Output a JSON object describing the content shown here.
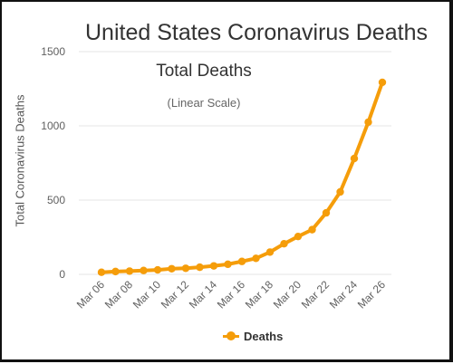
{
  "page": {
    "title": "United States Coronavirus Deaths"
  },
  "chart_data": {
    "type": "line",
    "title": "Total Deaths",
    "subtitle": "(Linear Scale)",
    "xlabel": "",
    "ylabel": "Total Coronavirus Deaths",
    "ylim": [
      0,
      1500
    ],
    "yticks": [
      0,
      500,
      1000,
      1500
    ],
    "grid": "horizontal",
    "legend_position": "bottom-center",
    "x": [
      "Mar 06",
      "Mar 07",
      "Mar 08",
      "Mar 09",
      "Mar 10",
      "Mar 11",
      "Mar 12",
      "Mar 13",
      "Mar 14",
      "Mar 15",
      "Mar 16",
      "Mar 17",
      "Mar 18",
      "Mar 19",
      "Mar 20",
      "Mar 21",
      "Mar 22",
      "Mar 23",
      "Mar 24",
      "Mar 25",
      "Mar 26"
    ],
    "x_tick_labels": [
      "Mar 06",
      "Mar 08",
      "Mar 10",
      "Mar 12",
      "Mar 14",
      "Mar 16",
      "Mar 18",
      "Mar 20",
      "Mar 22",
      "Mar 24",
      "Mar 26"
    ],
    "series": [
      {
        "name": "Deaths",
        "color": "#f59d0a",
        "values": [
          14,
          19,
          22,
          26,
          30,
          38,
          41,
          48,
          57,
          68,
          87,
          108,
          150,
          206,
          255,
          301,
          414,
          555,
          780,
          1025,
          1293
        ]
      }
    ]
  },
  "colors": {
    "series": "#f59d0a",
    "grid": "#e6e6e6",
    "axis_text": "#606060"
  }
}
